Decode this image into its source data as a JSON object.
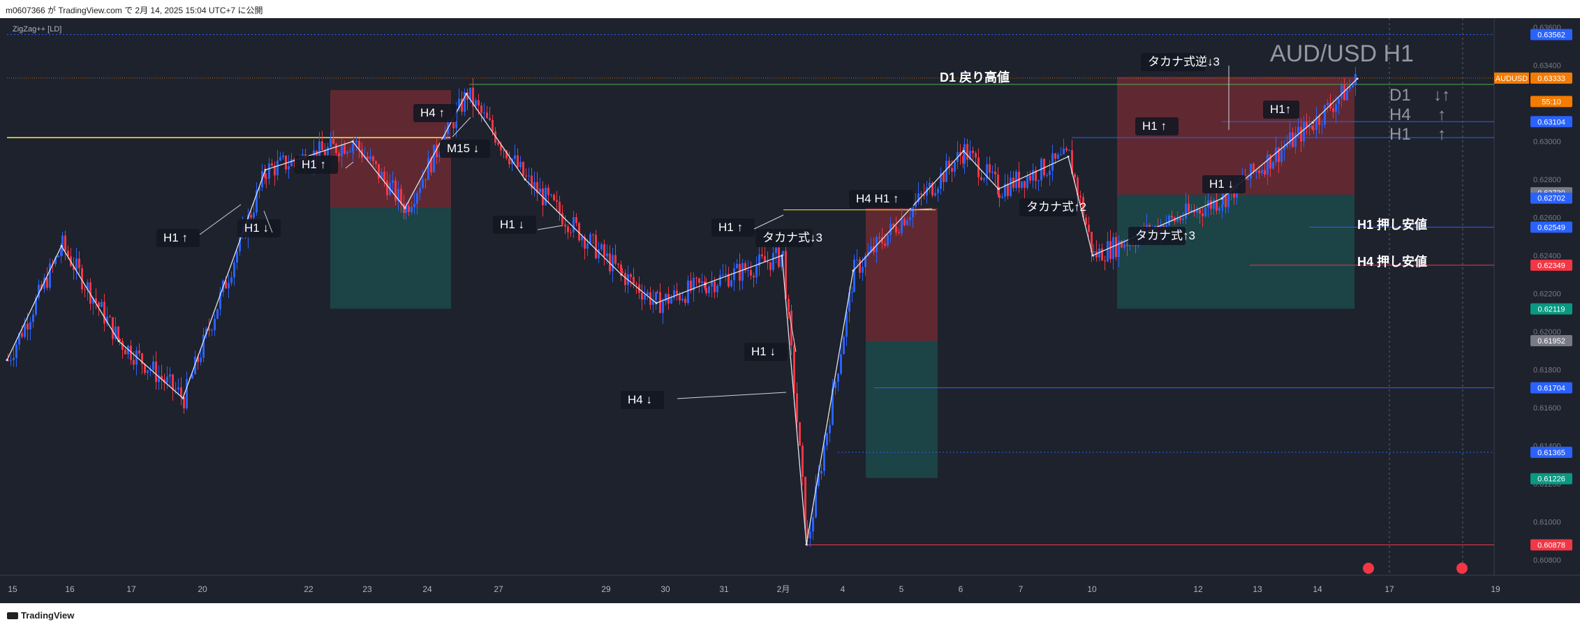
{
  "header": {
    "publish_text": "m0607366 が TradingView.com で 2月 14, 2025 15:04 UTC+7 に公開"
  },
  "indicator": {
    "label": "ZigZag++ [LD]"
  },
  "title": {
    "symbol_tf": "AUD/USD H1"
  },
  "trend_summary": [
    {
      "tf": "D1",
      "dir": "↓↑"
    },
    {
      "tf": "H4",
      "dir": "↑"
    },
    {
      "tf": "H1",
      "dir": "↑"
    }
  ],
  "price_axis": {
    "ticks": [
      "0.63600",
      "0.63400",
      "0.63200",
      "0.63000",
      "0.62800",
      "0.62600",
      "0.62400",
      "0.62200",
      "0.62000",
      "0.61800",
      "0.61600",
      "0.61400",
      "0.61200",
      "0.61000",
      "0.60800"
    ],
    "tags": [
      {
        "text": "0.63562",
        "color": "#2962ff",
        "price": 0.63562
      },
      {
        "text": "AUDUSD",
        "color": "#f57c00",
        "price": 0.63333,
        "side": "left"
      },
      {
        "text": "0.63333",
        "color": "#f57c00",
        "price": 0.63333
      },
      {
        "text": "55:10",
        "color": "#f57c00",
        "price": 0.6321
      },
      {
        "text": "0.63104",
        "color": "#2962ff",
        "price": 0.63104
      },
      {
        "text": "0.62730",
        "color": "#787b86",
        "price": 0.6273
      },
      {
        "text": "0.62702",
        "color": "#2962ff",
        "price": 0.62702
      },
      {
        "text": "0.62549",
        "color": "#2962ff",
        "price": 0.62549
      },
      {
        "text": "0.62349",
        "color": "#f23645",
        "price": 0.62349
      },
      {
        "text": "0.62119",
        "color": "#089981",
        "price": 0.62119
      },
      {
        "text": "0.61952",
        "color": "#787b86",
        "price": 0.61952
      },
      {
        "text": "0.61704",
        "color": "#2962ff",
        "price": 0.61704
      },
      {
        "text": "0.61365",
        "color": "#2962ff",
        "price": 0.61365
      },
      {
        "text": "0.61226",
        "color": "#089981",
        "price": 0.61226
      },
      {
        "text": "0.60878",
        "color": "#f23645",
        "price": 0.60878
      }
    ]
  },
  "time_axis": [
    "15",
    "16",
    "17",
    "20",
    "22",
    "23",
    "24",
    "27",
    "29",
    "30",
    "31",
    "2月",
    "4",
    "5",
    "6",
    "7",
    "10",
    "12",
    "13",
    "14",
    "17",
    "19"
  ],
  "level_labels": [
    {
      "text": "D1 戻り高値"
    },
    {
      "text": "H1 押し安値"
    },
    {
      "text": "H4 押し安値"
    }
  ],
  "annotations": [
    "H1 ↑",
    "H1 ↓",
    "H1 ↑",
    "H4 ↑",
    "M15 ↓",
    "H1 ↓",
    "H1 ↑",
    "タカナ式↓3",
    "H1 ↓",
    "H4 ↓",
    "H4 H1 ↑",
    "タカナ式↑2",
    "タカナ式逆↓3",
    "H1 ↑",
    "H1↑",
    "H1 ↓",
    "タカナ式↑3"
  ],
  "footer": {
    "brand": "TradingView"
  },
  "chart_data": {
    "type": "line",
    "title": "AUD/USD H1",
    "x": [
      "15",
      "16",
      "17",
      "20",
      "22",
      "23",
      "24",
      "27",
      "29",
      "30",
      "31",
      "2月",
      "4",
      "5",
      "6",
      "7",
      "10",
      "12",
      "13",
      "14",
      "17",
      "19"
    ],
    "ylim": [
      0.607,
      0.6363
    ],
    "series": [
      {
        "name": "AUDUSD",
        "values": [
          0.6185,
          0.6245,
          0.6195,
          0.6165,
          0.6285,
          0.63,
          0.6265,
          0.6325,
          0.628,
          0.623,
          0.6215,
          0.6225,
          0.624,
          0.6088,
          0.6232,
          0.6295,
          0.6275,
          0.6292,
          0.624,
          0.627,
          0.631,
          0.6333
        ]
      }
    ],
    "levels": [
      {
        "price": 0.63562,
        "color": "#2962ff"
      },
      {
        "price": 0.63333,
        "color": "#f57c00"
      },
      {
        "price": 0.63104,
        "color": "#2962ff"
      },
      {
        "price": 0.62702,
        "color": "#2962ff"
      },
      {
        "price": 0.62549,
        "color": "#2962ff"
      },
      {
        "price": 0.62349,
        "color": "#f23645"
      },
      {
        "price": 0.61704,
        "color": "#2962ff"
      },
      {
        "price": 0.61365,
        "color": "#2962ff"
      },
      {
        "price": 0.60878,
        "color": "#f23645"
      }
    ]
  }
}
